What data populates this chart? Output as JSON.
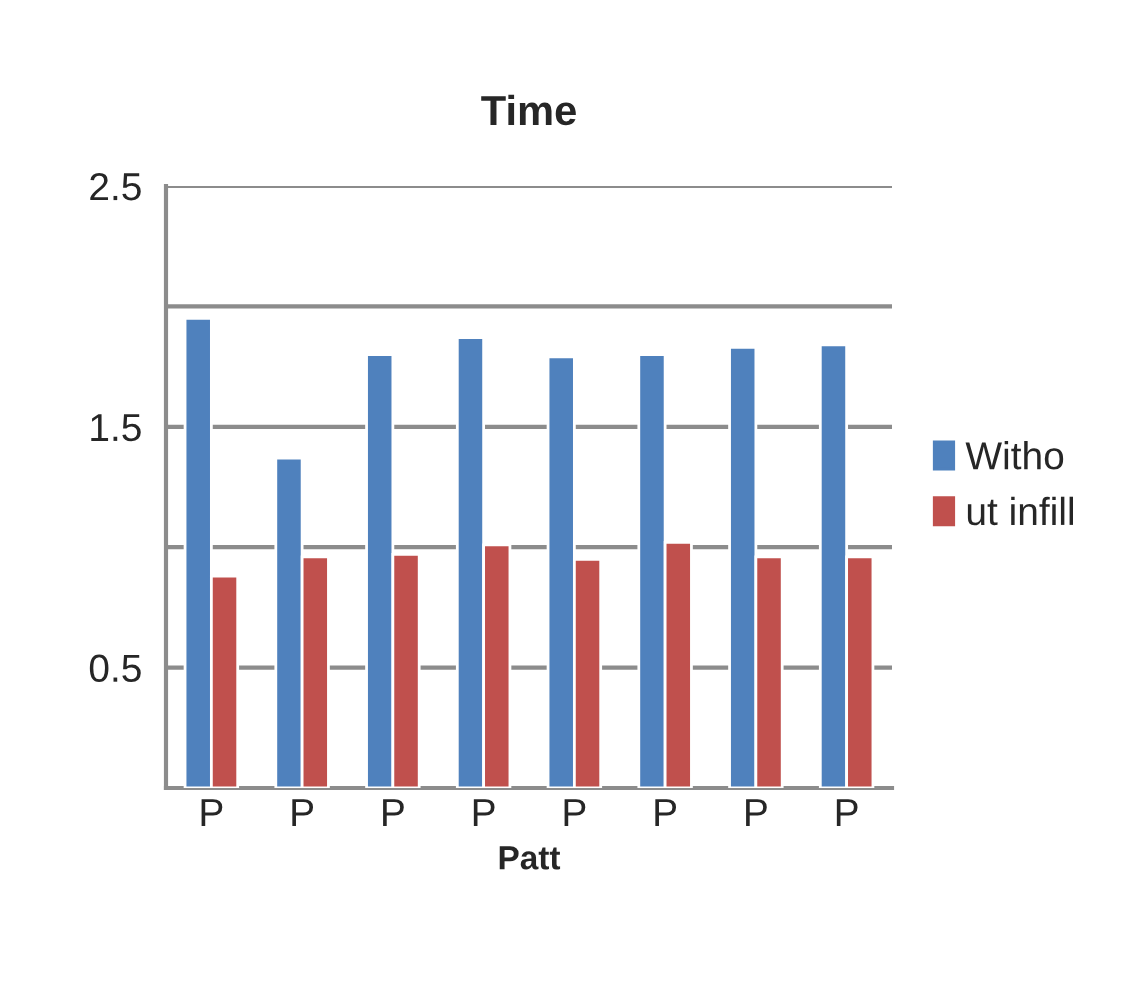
{
  "chart_data": {
    "type": "bar",
    "title": "Time",
    "xlabel": "Patt",
    "categories": [
      "P",
      "P",
      "P",
      "P",
      "P",
      "P",
      "P",
      "P"
    ],
    "series": [
      {
        "name": "Witho",
        "color": "#4f81bd",
        "values": [
          1.95,
          1.37,
          1.8,
          1.87,
          1.79,
          1.8,
          1.83,
          1.84
        ]
      },
      {
        "name": "ut infill",
        "color": "#c0504d",
        "values": [
          0.88,
          0.96,
          0.97,
          1.01,
          0.95,
          1.02,
          0.96,
          0.96
        ]
      }
    ],
    "ylim": [
      0,
      2.5
    ],
    "yticks": [
      {
        "value": 0,
        "label": null
      },
      {
        "value": 0.5,
        "label": "0.5"
      },
      {
        "value": 1,
        "label": null
      },
      {
        "value": 1.5,
        "label": "1.5"
      },
      {
        "value": 2,
        "label": null
      },
      {
        "value": 2.5,
        "label": "2.5"
      }
    ],
    "grid": "y",
    "legend": "right"
  }
}
